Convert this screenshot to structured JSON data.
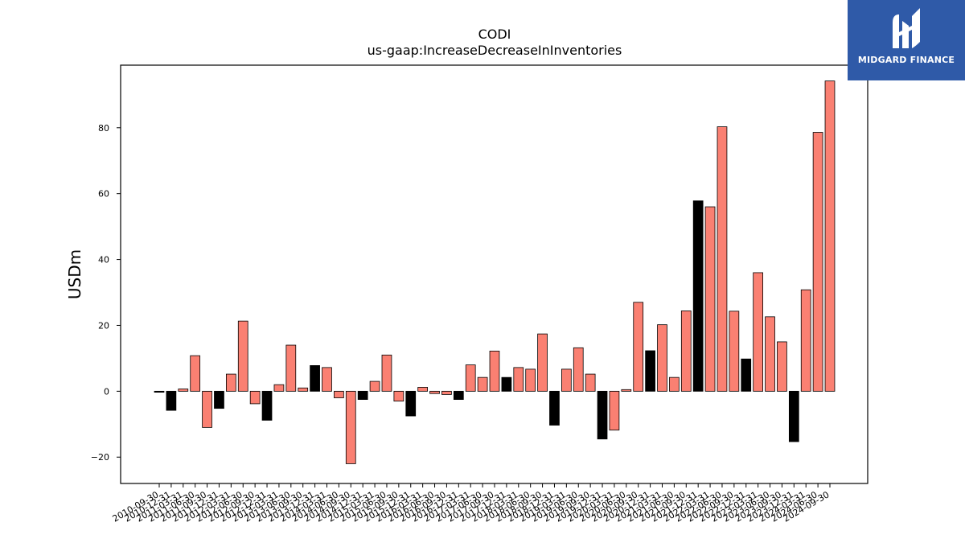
{
  "chart_data": {
    "type": "bar",
    "title": "CODI",
    "subtitle": "us-gaap:IncreaseDecreaseInInventories",
    "ylabel": "USDm",
    "ylim": [
      -28,
      99
    ],
    "yticks": [
      -20,
      0,
      20,
      40,
      60,
      80
    ],
    "colors": {
      "positive_highlight": "#fa8072",
      "negative_or_q4": "#000000",
      "edge": "#000000"
    },
    "categories": [
      "2010-09-30",
      "2010-12-31",
      "2011-03-31",
      "2011-06-30",
      "2011-09-30",
      "2011-12-31",
      "2012-03-31",
      "2012-06-30",
      "2012-09-30",
      "2012-12-31",
      "2013-03-31",
      "2013-06-30",
      "2013-09-30",
      "2013-12-31",
      "2014-03-31",
      "2014-06-30",
      "2014-09-30",
      "2014-12-31",
      "2015-03-31",
      "2015-06-30",
      "2015-09-30",
      "2015-12-31",
      "2016-03-31",
      "2016-06-30",
      "2016-09-30",
      "2016-12-31",
      "2017-03-31",
      "2017-06-30",
      "2017-09-30",
      "2017-12-31",
      "2018-03-31",
      "2018-06-30",
      "2018-09-30",
      "2018-12-31",
      "2019-03-31",
      "2019-06-30",
      "2019-09-30",
      "2019-12-31",
      "2020-03-31",
      "2020-06-30",
      "2020-09-30",
      "2020-12-31",
      "2021-03-31",
      "2021-06-30",
      "2021-09-30",
      "2021-12-31",
      "2022-03-31",
      "2022-06-30",
      "2022-09-30",
      "2022-12-31",
      "2023-03-31",
      "2023-06-30",
      "2023-09-30",
      "2023-12-31",
      "2024-03-31",
      "2024-06-30",
      "2024-09-30"
    ],
    "values": [
      -0.3,
      -5.8,
      0.7,
      10.8,
      -11.0,
      -5.2,
      5.2,
      21.3,
      -3.8,
      -8.8,
      2.0,
      14.0,
      1.0,
      7.8,
      7.2,
      -2.0,
      -22.0,
      -2.5,
      3.0,
      11.0,
      -3.0,
      -7.5,
      1.2,
      -0.7,
      -1.0,
      -2.5,
      8.0,
      4.2,
      12.2,
      4.2,
      7.2,
      6.7,
      17.4,
      -10.3,
      6.7,
      13.2,
      5.2,
      -14.5,
      -11.8,
      0.5,
      27.0,
      12.3,
      20.2,
      4.2,
      24.4,
      57.8,
      56.0,
      80.3,
      24.3,
      9.8,
      36.0,
      22.6,
      15.0,
      -15.3,
      30.8,
      78.6,
      94.2
    ],
    "bar_colors": [
      "negative_or_q4",
      "negative_or_q4",
      "positive_highlight",
      "positive_highlight",
      "positive_highlight",
      "negative_or_q4",
      "positive_highlight",
      "positive_highlight",
      "positive_highlight",
      "negative_or_q4",
      "positive_highlight",
      "positive_highlight",
      "positive_highlight",
      "negative_or_q4",
      "positive_highlight",
      "positive_highlight",
      "positive_highlight",
      "negative_or_q4",
      "positive_highlight",
      "positive_highlight",
      "positive_highlight",
      "negative_or_q4",
      "positive_highlight",
      "positive_highlight",
      "positive_highlight",
      "negative_or_q4",
      "positive_highlight",
      "positive_highlight",
      "positive_highlight",
      "negative_or_q4",
      "positive_highlight",
      "positive_highlight",
      "positive_highlight",
      "negative_or_q4",
      "positive_highlight",
      "positive_highlight",
      "positive_highlight",
      "negative_or_q4",
      "positive_highlight",
      "positive_highlight",
      "positive_highlight",
      "negative_or_q4",
      "positive_highlight",
      "positive_highlight",
      "positive_highlight",
      "negative_or_q4",
      "positive_highlight",
      "positive_highlight",
      "positive_highlight",
      "negative_or_q4",
      "positive_highlight",
      "positive_highlight",
      "positive_highlight",
      "negative_or_q4",
      "positive_highlight",
      "positive_highlight",
      "positive_highlight"
    ]
  },
  "brand": {
    "logo_text": "MIDGARD FINANCE",
    "logo_icon": "midgard-monogram-icon",
    "background": "#2f5aa8"
  }
}
